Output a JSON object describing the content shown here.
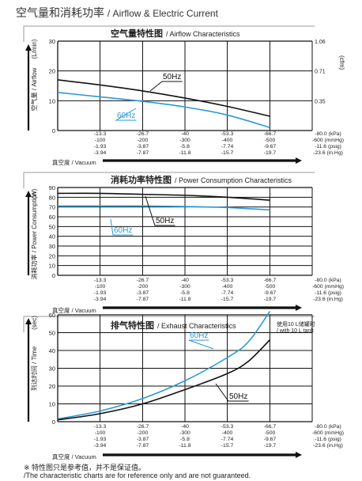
{
  "page": {
    "title_cn": "空气量和消耗功率",
    "title_en": "/ Airflow & Electric Current"
  },
  "footnote": {
    "cn": "※ 特性图只是参考值，并不是保证值。",
    "en": "/The characteristic charts are for reference only and are not guaranteed."
  },
  "colors": {
    "series_50hz": "#111111",
    "series_60hz": "#2a9ad6",
    "axis": "#111111"
  },
  "chart_data": [
    {
      "type": "line",
      "title": "空气量特性图",
      "title_en": "/ Airflow Characteristics",
      "ylabel_cn": "空气量",
      "ylabel_en": "/ Airflow",
      "ylabel_unit": "(L/min)",
      "y2label_unit": "(cfm)",
      "xlabel": "真空度 / Vacuum",
      "ylim": [
        0,
        30
      ],
      "yticks": [
        "0",
        "10",
        "20",
        "30"
      ],
      "y2ticks": [
        "0.35",
        "0.71",
        "1.06"
      ],
      "x_ticks": [
        [
          "-13.3",
          "-100",
          "-1.93",
          "-3.94"
        ],
        [
          "-26.7",
          "-200",
          "-3.87",
          "-7.87"
        ],
        [
          "-40",
          "-300",
          "-5.8",
          "-11.8"
        ],
        [
          "-53.3",
          "-400",
          "-7.74",
          "-15.7"
        ],
        [
          "-66.7",
          "-500",
          "-9.67",
          "-19.7"
        ],
        [
          "-80.0 (kPa)",
          "-600 (mmHg)",
          "-11.6 (psig)",
          "-23.6 (in.Hg)"
        ]
      ],
      "grid": true,
      "series": [
        {
          "name": "50Hz",
          "x": [
            0,
            -13.3,
            -26.7,
            -40,
            -53.3,
            -66.7
          ],
          "y": [
            17,
            15.3,
            13.3,
            10.9,
            8.1,
            4.8
          ]
        },
        {
          "name": "60Hz",
          "x": [
            0,
            -13.3,
            -26.7,
            -40,
            -53.3,
            -66.7
          ],
          "y": [
            12.8,
            11.3,
            9.8,
            7.9,
            5.2,
            1.0
          ]
        }
      ]
    },
    {
      "type": "line",
      "title": "消耗功率特性图",
      "title_en": "/ Power Consumption Characteristics",
      "ylabel_cn": "消耗功率",
      "ylabel_en": "/ Power Consumption",
      "ylabel_unit": "(W)",
      "xlabel": "真空度 / Vacuum",
      "ylim": [
        0,
        90
      ],
      "yticks": [
        "0",
        "10",
        "20",
        "30",
        "40",
        "50",
        "60",
        "70",
        "80",
        "90"
      ],
      "x_ticks": [
        [
          "-13.3",
          "-100",
          "-1.93",
          "-3.94"
        ],
        [
          "-26.7",
          "-200",
          "-3.87",
          "-7.87"
        ],
        [
          "-40",
          "-300",
          "-5.8",
          "-11.8"
        ],
        [
          "-53.3",
          "-400",
          "-7.74",
          "-15.7"
        ],
        [
          "-66.7",
          "-500",
          "-9.67",
          "-19.7"
        ],
        [
          "-80.0 (kPa)",
          "-600 (mmHg)",
          "-11.6 (psig)",
          "-23.6 (in.Hg)"
        ]
      ],
      "grid": true,
      "series": [
        {
          "name": "50Hz",
          "x": [
            0,
            -13.3,
            -26.7,
            -40,
            -53.3,
            -66.7
          ],
          "y": [
            84,
            84,
            83,
            82,
            80,
            77
          ]
        },
        {
          "name": "60Hz",
          "x": [
            0,
            -13.3,
            -26.7,
            -40,
            -53.3,
            -66.7
          ],
          "y": [
            71,
            71,
            71,
            70.5,
            69.5,
            67
          ]
        }
      ]
    },
    {
      "type": "line",
      "title": "排气特性图",
      "title_en": "/ Exhaust Characteristics",
      "note": "使用10 L储罐时 / with 10 L tank",
      "ylabel_cn": "到达时间",
      "ylabel_en": "/ Time",
      "ylabel_unit": "(sec)",
      "xlabel": "真空度 / Vacuum",
      "ylim": [
        0,
        60
      ],
      "yticks": [
        "0",
        "10",
        "20",
        "30",
        "40",
        "50",
        "60"
      ],
      "x_ticks": [
        [
          "-13.3",
          "-100",
          "-1.93",
          "-3.94"
        ],
        [
          "-26.7",
          "-200",
          "-3.87",
          "-7.87"
        ],
        [
          "-40",
          "-300",
          "-5.8",
          "-11.8"
        ],
        [
          "-53.3",
          "-400",
          "-7.74",
          "-15.7"
        ],
        [
          "-66.7",
          "-500",
          "-9.67",
          "-19.7"
        ],
        [
          "-80.0 (kPa)",
          "-600 (mmHg)",
          "-11.6 (psig)",
          "-23.6 (in.Hg)"
        ]
      ],
      "grid": true,
      "series": [
        {
          "name": "60Hz",
          "x": [
            0,
            -13.3,
            -26.7,
            -40,
            -53.3,
            -60,
            -66.7
          ],
          "y": [
            1.5,
            6,
            13,
            23,
            36,
            45,
            62
          ]
        },
        {
          "name": "50Hz",
          "x": [
            0,
            -13.3,
            -26.7,
            -40,
            -53.3,
            -60,
            -66.7
          ],
          "y": [
            1.0,
            4.5,
            10,
            18,
            27,
            34,
            46
          ]
        }
      ]
    }
  ]
}
